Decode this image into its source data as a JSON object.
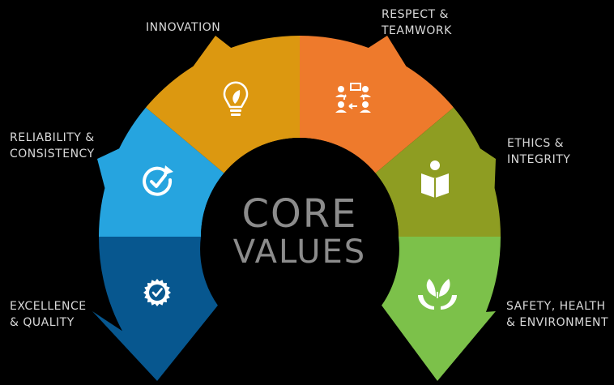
{
  "center": {
    "line1": "CORE",
    "line2": "VALUES"
  },
  "colors": {
    "background": "#000000",
    "center_circle": "#000000",
    "center_text": "#8c8c8c",
    "label_text": "#d9d9d9"
  },
  "segments": [
    {
      "key": "excellence",
      "label_lines": [
        "EXCELLENCE",
        "& QUALITY"
      ],
      "color": "#07578f",
      "icon": "badge-check-icon"
    },
    {
      "key": "reliability",
      "label_lines": [
        "RELIABILITY &",
        "CONSISTENCY"
      ],
      "color": "#26a4df",
      "icon": "circle-check-arrow-icon"
    },
    {
      "key": "innovation",
      "label_lines": [
        "INNOVATION"
      ],
      "color": "#dc9810",
      "icon": "lightbulb-icon"
    },
    {
      "key": "respect",
      "label_lines": [
        "RESPECT &",
        "TEAMWORK"
      ],
      "color": "#ee7a2c",
      "icon": "team-icon"
    },
    {
      "key": "ethics",
      "label_lines": [
        "ETHICS &",
        "INTEGRITY"
      ],
      "color": "#8e9d22",
      "icon": "person-book-icon"
    },
    {
      "key": "safety",
      "label_lines": [
        "SAFETY, HEALTH",
        "& ENVIRONMENT"
      ],
      "color": "#7cc14a",
      "icon": "hands-leaf-icon"
    }
  ]
}
